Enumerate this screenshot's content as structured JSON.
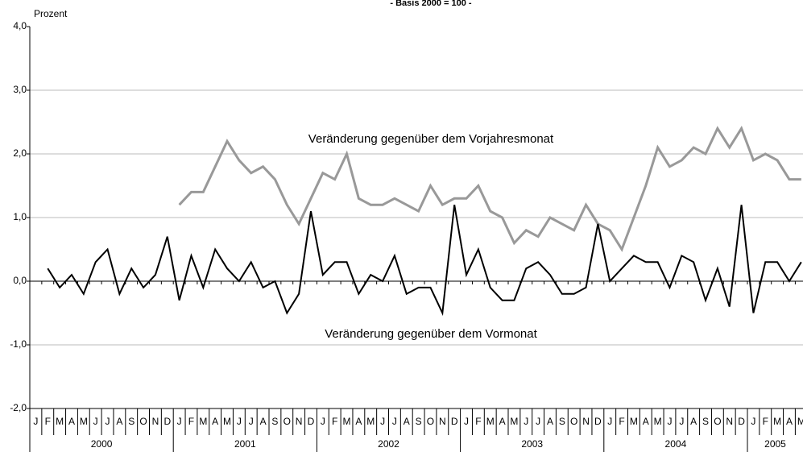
{
  "chart_data": {
    "type": "line",
    "title": "- Basis 2000 = 100 -",
    "y_label": "Prozent",
    "annotations": [
      "Veränderung gegenüber dem Vorjahresmonat",
      "Veränderung gegenüber dem Vormonat"
    ],
    "categories": [
      "J",
      "F",
      "M",
      "A",
      "M",
      "J",
      "J",
      "A",
      "S",
      "O",
      "N",
      "D",
      "J",
      "F",
      "M",
      "A",
      "M",
      "J",
      "J",
      "A",
      "S",
      "O",
      "N",
      "D",
      "J",
      "F",
      "M",
      "A",
      "M",
      "J",
      "J",
      "A",
      "S",
      "O",
      "N",
      "D",
      "J",
      "F",
      "M",
      "A",
      "M",
      "J",
      "J",
      "A",
      "S",
      "O",
      "N",
      "D",
      "J",
      "F",
      "M",
      "A",
      "M",
      "J",
      "J",
      "A",
      "S",
      "O",
      "N",
      "D",
      "J",
      "F",
      "M",
      "A",
      "M"
    ],
    "years": [
      "2000",
      "2001",
      "2002",
      "2003",
      "2004",
      "2005"
    ],
    "series": [
      {
        "name": "Veränderung gegenüber dem Vorjahresmonat",
        "color": "#999999",
        "values": [
          null,
          null,
          null,
          null,
          null,
          null,
          null,
          null,
          null,
          null,
          null,
          null,
          1.2,
          1.4,
          1.4,
          1.8,
          2.2,
          1.9,
          1.7,
          1.8,
          1.6,
          1.2,
          0.9,
          1.3,
          1.7,
          1.6,
          2.0,
          1.3,
          1.2,
          1.2,
          1.3,
          1.2,
          1.1,
          1.5,
          1.2,
          1.3,
          1.3,
          1.5,
          1.1,
          1.0,
          0.6,
          0.8,
          0.7,
          1.0,
          0.9,
          0.8,
          1.2,
          0.9,
          0.8,
          0.5,
          1.0,
          1.5,
          2.1,
          1.8,
          1.9,
          2.1,
          2.0,
          2.4,
          2.1,
          2.4,
          1.9,
          2.0,
          1.9,
          1.6,
          1.6
        ]
      },
      {
        "name": "Veränderung gegenüber dem Vormonat",
        "color": "#000000",
        "values": [
          null,
          0.2,
          -0.1,
          0.1,
          -0.2,
          0.3,
          0.5,
          -0.2,
          0.2,
          -0.1,
          0.1,
          0.7,
          -0.3,
          0.4,
          -0.1,
          0.5,
          0.2,
          0.0,
          0.3,
          -0.1,
          0.0,
          -0.5,
          -0.2,
          1.1,
          0.1,
          0.3,
          0.3,
          -0.2,
          0.1,
          0.0,
          0.4,
          -0.2,
          -0.1,
          -0.1,
          -0.5,
          1.2,
          0.1,
          0.5,
          -0.1,
          -0.3,
          -0.3,
          0.2,
          0.3,
          0.1,
          -0.2,
          -0.2,
          -0.1,
          0.9,
          0.0,
          0.2,
          0.4,
          0.3,
          0.3,
          -0.1,
          0.4,
          0.3,
          -0.3,
          0.2,
          -0.4,
          1.2,
          -0.5,
          0.3,
          0.3,
          0.0,
          0.3
        ]
      }
    ],
    "ylim": [
      -2,
      4
    ],
    "yticks": [
      {
        "value": -2,
        "label": "-2,0"
      },
      {
        "value": -1,
        "label": "-1,0"
      },
      {
        "value": 0,
        "label": "0,0"
      },
      {
        "value": 1,
        "label": "1,0"
      },
      {
        "value": 2,
        "label": "2,0"
      },
      {
        "value": 3,
        "label": "3,0"
      },
      {
        "value": 4,
        "label": "4,0"
      }
    ],
    "grid": true
  }
}
